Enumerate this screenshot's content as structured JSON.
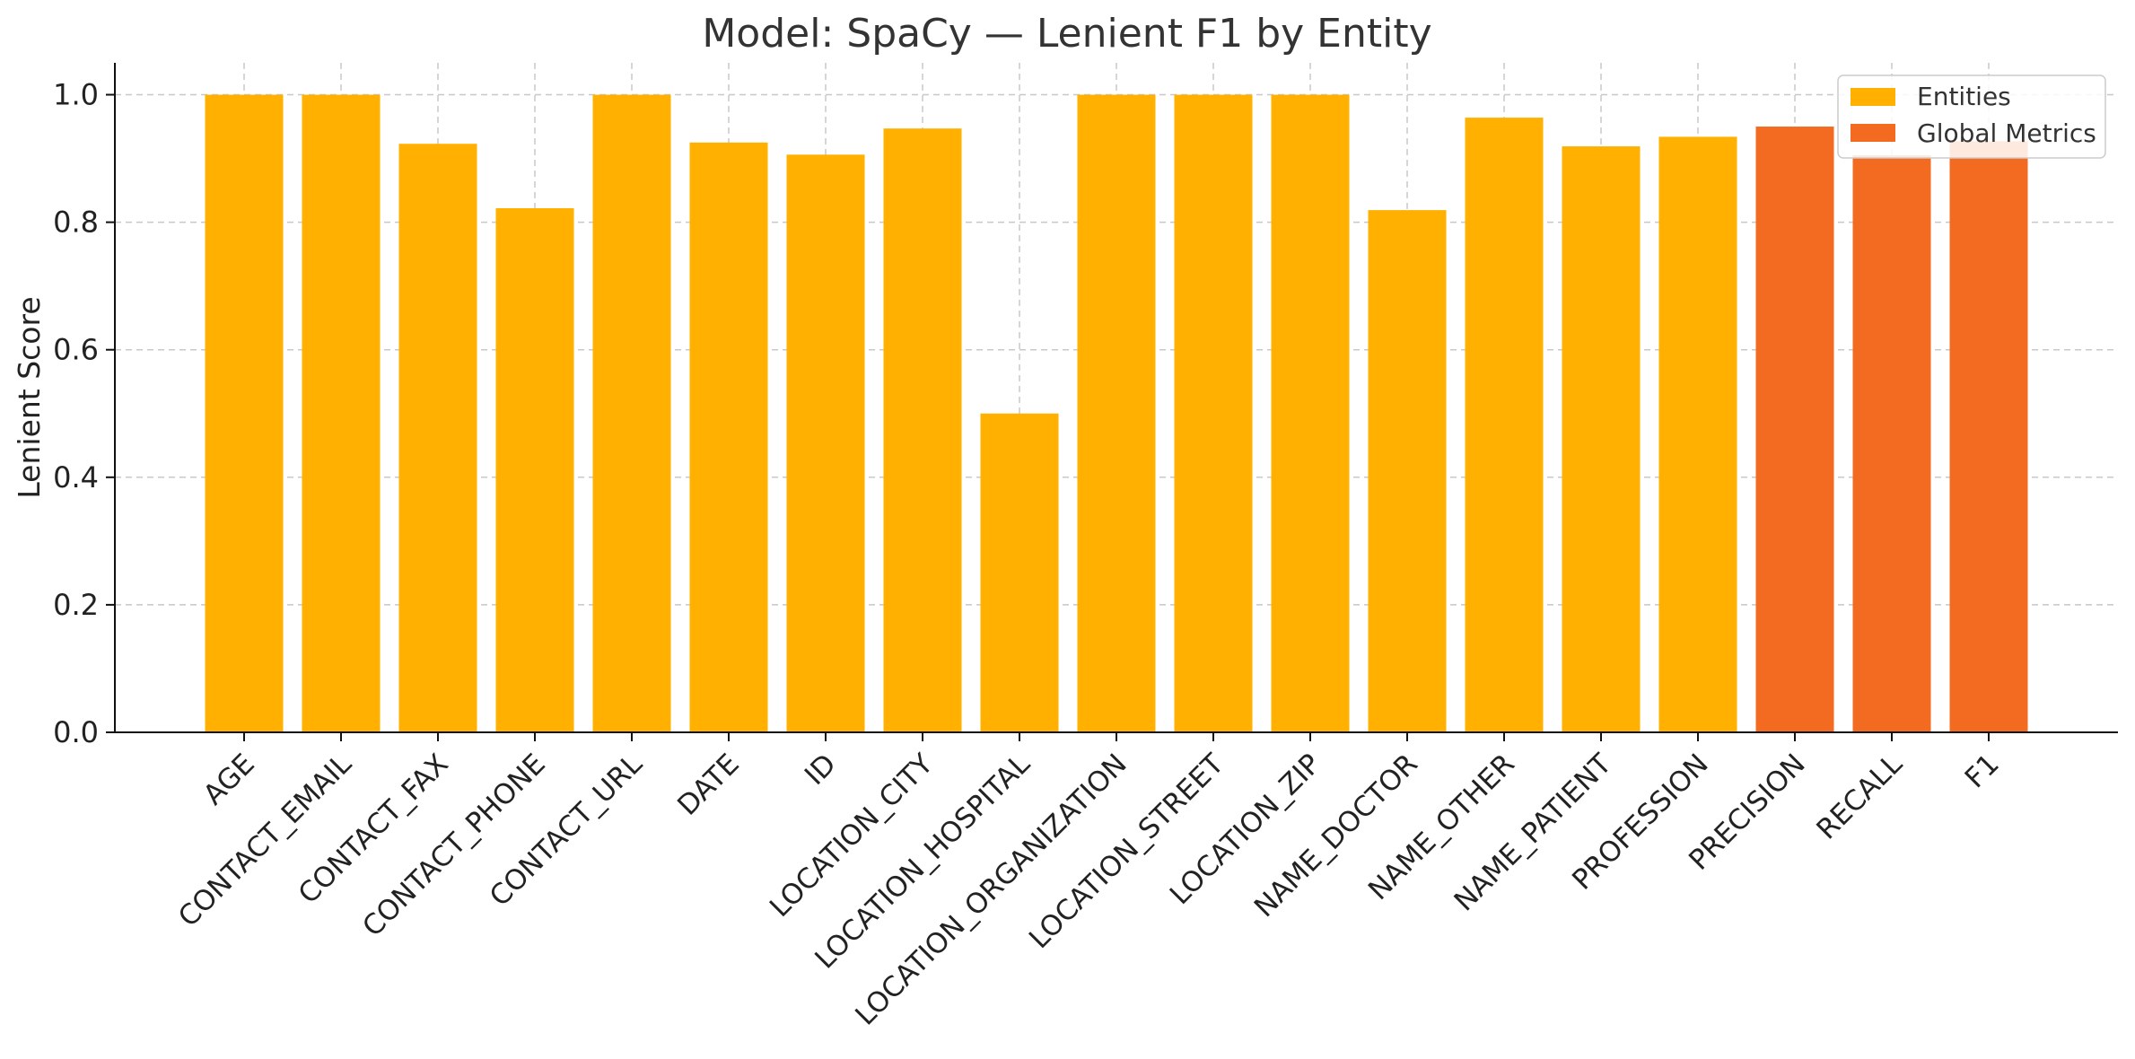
{
  "chart_data": {
    "type": "bar",
    "title": "Model: SpaCy — Lenient F1 by Entity",
    "xlabel": "",
    "ylabel": "Lenient Score",
    "ylim": [
      0,
      1.05
    ],
    "yticks": [
      0.0,
      0.2,
      0.4,
      0.6,
      0.8,
      1.0
    ],
    "ytick_labels": [
      "0.0",
      "0.2",
      "0.4",
      "0.6",
      "0.8",
      "1.0"
    ],
    "grid": true,
    "legend_position": "top-right",
    "categories": [
      "AGE",
      "CONTACT_EMAIL",
      "CONTACT_FAX",
      "CONTACT_PHONE",
      "CONTACT_URL",
      "DATE",
      "ID",
      "LOCATION_CITY",
      "LOCATION_HOSPITAL",
      "LOCATION_ORGANIZATION",
      "LOCATION_STREET",
      "LOCATION_ZIP",
      "NAME_DOCTOR",
      "NAME_OTHER",
      "NAME_PATIENT",
      "PROFESSION",
      "PRECISION",
      "RECALL",
      "F1"
    ],
    "values": [
      1.0,
      1.0,
      0.923,
      0.822,
      1.0,
      0.925,
      0.906,
      0.947,
      0.5,
      1.0,
      1.0,
      1.0,
      0.819,
      0.964,
      0.919,
      0.934,
      0.95,
      0.905,
      0.927
    ],
    "groups": [
      "Entities",
      "Entities",
      "Entities",
      "Entities",
      "Entities",
      "Entities",
      "Entities",
      "Entities",
      "Entities",
      "Entities",
      "Entities",
      "Entities",
      "Entities",
      "Entities",
      "Entities",
      "Entities",
      "Global Metrics",
      "Global Metrics",
      "Global Metrics"
    ],
    "legend": [
      {
        "name": "Entities",
        "color": "#FFB000"
      },
      {
        "name": "Global Metrics",
        "color": "#F26B21"
      }
    ]
  }
}
